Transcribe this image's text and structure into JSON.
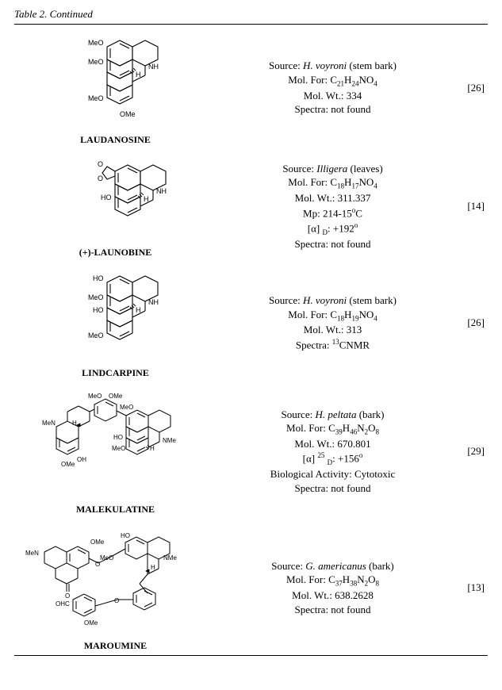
{
  "table_title": "Table 2. Continued",
  "entries": [
    {
      "name": "LAUDANOSINE",
      "svg": "laudanosine",
      "info_html": "Source: <i>H. voyroni</i> (stem bark)<br>Mol. For: C<sub>21</sub>H<sub>24</sub>NO<sub>4</sub><br>Mol. Wt.:  334<br>Spectra: not found",
      "ref": "[26]"
    },
    {
      "name": "(+)-LAUNOBINE",
      "svg": "launobine",
      "info_html": "Source: <i>Illigera</i> (leaves)<br>Mol. For: C<sub>18</sub>H<sub>17</sub>NO<sub>4</sub><br>Mol. Wt.:  311.337<br>Mp: 214-15<sup>o</sup>C<br>[&alpha;] <sub>D</sub>: +192<sup>o</sup><br>Spectra: not found",
      "ref": "[14]"
    },
    {
      "name": "LINDCARPINE",
      "svg": "lindcarpine",
      "info_html": "Source: <i>H. voyroni</i> (stem bark)<br>Mol. For: C<sub>18</sub>H<sub>19</sub>NO<sub>4</sub><br>Mol. Wt.:  313<br>Spectra: <sup>13</sup>CNMR",
      "ref": "[26]"
    },
    {
      "name": "MALEKULATINE",
      "svg": "malekulatine",
      "info_html": "Source: <i>H. peltata</i> (bark)<br>Mol. For: C<sub>39</sub>H<sub>46</sub>N<sub>2</sub>O<sub>8</sub><br>Mol. Wt.:  670.801<br>[&alpha;] <sup>25</sup> <sub>D</sub>: +156<sup>o</sup><br>Biological Activity: Cytotoxic<br>Spectra: not found",
      "ref": "[29]"
    },
    {
      "name": "MAROUMINE",
      "svg": "maroumine",
      "info_html": "Source: <i>G. americanus</i> (bark)<br>Mol. For: C<sub>37</sub>H<sub>38</sub>N<sub>2</sub>O<sub>8</sub><br>Mol. Wt.:  638.2628<br>Spectra: not found",
      "ref": "[13]"
    }
  ],
  "style": {
    "stroke": "#000000",
    "stroke_width": 1.1,
    "atom_font_size": 9,
    "atom_font_family": "Arial, Helvetica, sans-serif"
  }
}
